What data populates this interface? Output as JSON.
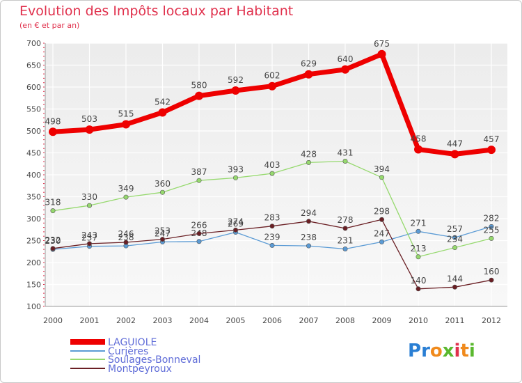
{
  "header": {
    "title": "Evolution des Impôts locaux par Habitant",
    "subtitle": "(en € et par an)"
  },
  "logo": {
    "text": "Proxiti",
    "letters": [
      {
        "ch": "P",
        "color": "#2a7fd4"
      },
      {
        "ch": "r",
        "color": "#2a7fd4"
      },
      {
        "ch": "o",
        "color": "#f08a1c"
      },
      {
        "ch": "x",
        "color": "#5ab82e"
      },
      {
        "ch": "i",
        "color": "#e0304c"
      },
      {
        "ch": "t",
        "color": "#f08a1c"
      },
      {
        "ch": "i",
        "color": "#5ab82e"
      }
    ]
  },
  "chart_data": {
    "type": "line",
    "title": "Evolution des Impôts locaux par Habitant",
    "subtitle": "(en € et par an)",
    "xlabel": "",
    "ylabel": "",
    "ylim": [
      100,
      700
    ],
    "yticks": [
      100,
      150,
      200,
      250,
      300,
      350,
      400,
      450,
      500,
      550,
      600,
      650,
      700
    ],
    "categories": [
      "2000",
      "2001",
      "2002",
      "2003",
      "2004",
      "2005",
      "2006",
      "2007",
      "2008",
      "2009",
      "2010",
      "2011",
      "2012"
    ],
    "grid": true,
    "legend_position": "bottom-left",
    "series": [
      {
        "name": "LAGUIOLE",
        "color": "#ee0000",
        "values": [
          498,
          503,
          515,
          542,
          580,
          592,
          602,
          629,
          640,
          675,
          458,
          447,
          457
        ],
        "labels": [
          "498",
          "503",
          "515",
          "542",
          "580",
          "592",
          "602",
          "629",
          "640",
          "675",
          "458",
          "447",
          "457"
        ]
      },
      {
        "name": "Curjères",
        "color": "#5b9bd5",
        "values": [
          230,
          237,
          238,
          247,
          248,
          269,
          239,
          238,
          231,
          247,
          271,
          257,
          282
        ],
        "labels": [
          "230",
          "237",
          "238",
          "247",
          "248",
          "269",
          "239",
          "238",
          "231",
          "247",
          "271",
          "257",
          "282"
        ]
      },
      {
        "name": "Soulages-Bonneval",
        "color": "#96d96e",
        "values": [
          318,
          330,
          349,
          360,
          387,
          393,
          403,
          428,
          431,
          394,
          213,
          234,
          255
        ],
        "labels": [
          "318",
          "330",
          "349",
          "360",
          "387",
          "393",
          "403",
          "428",
          "431",
          "394",
          "213",
          "234",
          "255"
        ]
      },
      {
        "name": "Montpeyroux",
        "color": "#6a1f24",
        "values": [
          232,
          243,
          246,
          253,
          266,
          274,
          283,
          294,
          278,
          298,
          140,
          144,
          160
        ],
        "labels": [
          "232",
          "243",
          "246",
          "253",
          "266",
          "274",
          "283",
          "294",
          "278",
          "298",
          "140",
          "144",
          "160"
        ]
      }
    ]
  }
}
